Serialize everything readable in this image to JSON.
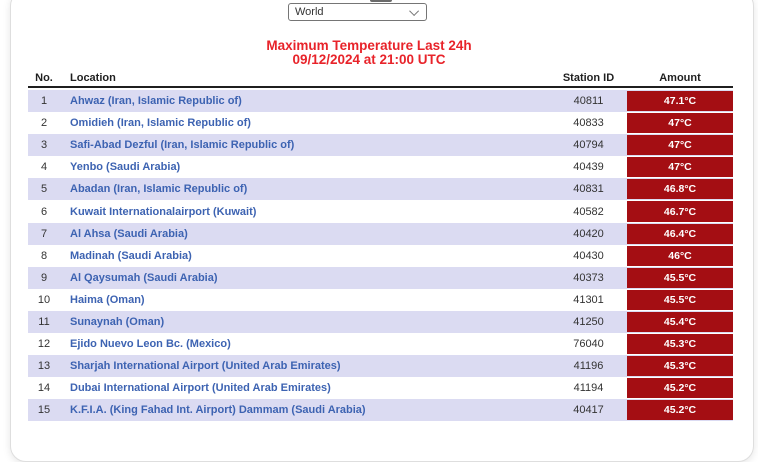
{
  "dropdown": {
    "selected": "World"
  },
  "title": {
    "line1": "Maximum Temperature Last 24h",
    "line2": "09/12/2024 at 21:00 UTC"
  },
  "table": {
    "headers": {
      "no": "No.",
      "location": "Location",
      "station": "Station ID",
      "amount": "Amount"
    },
    "rows": [
      {
        "no": "1",
        "location": "Ahwaz (Iran, Islamic Republic of)",
        "station": "40811",
        "amount": "47.1°C"
      },
      {
        "no": "2",
        "location": "Omidieh (Iran, Islamic Republic of)",
        "station": "40833",
        "amount": "47°C"
      },
      {
        "no": "3",
        "location": "Safi-Abad Dezful (Iran, Islamic Republic of)",
        "station": "40794",
        "amount": "47°C"
      },
      {
        "no": "4",
        "location": "Yenbo (Saudi Arabia)",
        "station": "40439",
        "amount": "47°C"
      },
      {
        "no": "5",
        "location": "Abadan (Iran, Islamic Republic of)",
        "station": "40831",
        "amount": "46.8°C"
      },
      {
        "no": "6",
        "location": "Kuwait Internationalairport (Kuwait)",
        "station": "40582",
        "amount": "46.7°C"
      },
      {
        "no": "7",
        "location": "Al Ahsa (Saudi Arabia)",
        "station": "40420",
        "amount": "46.4°C"
      },
      {
        "no": "8",
        "location": "Madinah (Saudi Arabia)",
        "station": "40430",
        "amount": "46°C"
      },
      {
        "no": "9",
        "location": "Al Qaysumah (Saudi Arabia)",
        "station": "40373",
        "amount": "45.5°C"
      },
      {
        "no": "10",
        "location": "Haima (Oman)",
        "station": "41301",
        "amount": "45.5°C"
      },
      {
        "no": "11",
        "location": "Sunaynah (Oman)",
        "station": "41250",
        "amount": "45.4°C"
      },
      {
        "no": "12",
        "location": "Ejido Nuevo Leon Bc. (Mexico)",
        "station": "76040",
        "amount": "45.3°C"
      },
      {
        "no": "13",
        "location": "Sharjah International Airport (United Arab Emirates)",
        "station": "41196",
        "amount": "45.3°C"
      },
      {
        "no": "14",
        "location": "Dubai International Airport (United Arab Emirates)",
        "station": "41194",
        "amount": "45.2°C"
      },
      {
        "no": "15",
        "location": "K.F.I.A. (King Fahad Int. Airport) Dammam (Saudi Arabia)",
        "station": "40417",
        "amount": "45.2°C"
      }
    ]
  },
  "colors": {
    "amount_badge": "#a40e13",
    "title_red": "#e8232a",
    "row_stripe": "#dbdbf2",
    "location_link": "#3d63b2"
  }
}
